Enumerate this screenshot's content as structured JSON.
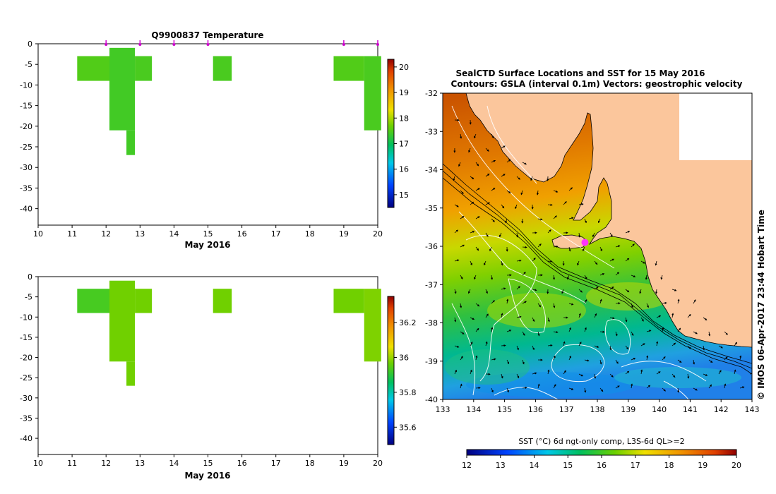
{
  "chart_data": [
    {
      "type": "heatmap",
      "title": "Q9900837  Temperature",
      "xlabel": "May 2016",
      "ylabel": "",
      "xlim": [
        10,
        20
      ],
      "ylim": [
        -44,
        0
      ],
      "x_ticks": [
        "10",
        "11",
        "12",
        "13",
        "14",
        "15",
        "16",
        "17",
        "18",
        "19",
        "20"
      ],
      "y_ticks": [
        "0",
        "-5",
        "-10",
        "-15",
        "-20",
        "-25",
        "-30",
        "-35",
        "-40"
      ],
      "profile_markers_x": [
        12,
        13,
        14,
        15,
        19,
        20
      ],
      "colorbar_ticks": [
        "15",
        "16",
        "17",
        "18",
        "19",
        "20"
      ],
      "colorbar_range": [
        14.5,
        20.3
      ],
      "cells": [
        {
          "x0": 11.15,
          "x1": 12.15,
          "y0": -9,
          "y1": -3,
          "value": 17.5
        },
        {
          "x0": 12.1,
          "x1": 12.85,
          "y0": -21,
          "y1": -1,
          "value": 17.4
        },
        {
          "x0": 12.6,
          "x1": 12.85,
          "y0": -27,
          "y1": -21,
          "value": 17.4
        },
        {
          "x0": 12.85,
          "x1": 13.35,
          "y0": -9,
          "y1": -3,
          "value": 17.45
        },
        {
          "x0": 15.15,
          "x1": 15.7,
          "y0": -9,
          "y1": -3,
          "value": 17.45
        },
        {
          "x0": 18.7,
          "x1": 19.6,
          "y0": -9,
          "y1": -3,
          "value": 17.5
        },
        {
          "x0": 19.6,
          "x1": 20.1,
          "y0": -21,
          "y1": -3,
          "value": 17.45
        }
      ]
    },
    {
      "type": "heatmap",
      "title": "",
      "xlabel": "May 2016",
      "ylabel": "",
      "xlim": [
        10,
        20
      ],
      "ylim": [
        -44,
        0
      ],
      "x_ticks": [
        "10",
        "11",
        "12",
        "13",
        "14",
        "15",
        "16",
        "17",
        "18",
        "19",
        "20"
      ],
      "y_ticks": [
        "0",
        "-5",
        "-10",
        "-15",
        "-20",
        "-25",
        "-30",
        "-35",
        "-40"
      ],
      "colorbar_ticks": [
        "35.6",
        "35.8",
        "36",
        "36.2"
      ],
      "colorbar_range": [
        35.5,
        36.35
      ],
      "cells": [
        {
          "x0": 11.15,
          "x1": 12.15,
          "y0": -9,
          "y1": -3,
          "value": 35.93
        },
        {
          "x0": 12.1,
          "x1": 12.85,
          "y0": -21,
          "y1": -1,
          "value": 35.97
        },
        {
          "x0": 12.6,
          "x1": 12.85,
          "y0": -27,
          "y1": -21,
          "value": 35.97
        },
        {
          "x0": 12.85,
          "x1": 13.35,
          "y0": -9,
          "y1": -3,
          "value": 35.97
        },
        {
          "x0": 15.15,
          "x1": 15.7,
          "y0": -9,
          "y1": -3,
          "value": 35.97
        },
        {
          "x0": 18.7,
          "x1": 19.6,
          "y0": -9,
          "y1": -3,
          "value": 35.97
        },
        {
          "x0": 19.6,
          "x1": 20.1,
          "y0": -21,
          "y1": -3,
          "value": 35.98
        }
      ]
    },
    {
      "type": "heatmap",
      "title": "SealCTD Surface Locations and SST for 15 May 2016",
      "subtitle": "Contours: GSLA (interval 0.1m) Vectors: geostrophic velocity",
      "xlabel": "",
      "ylabel": "",
      "xlim": [
        133,
        143
      ],
      "ylim": [
        -40,
        -32
      ],
      "x_ticks": [
        "133",
        "134",
        "135",
        "136",
        "137",
        "138",
        "139",
        "140",
        "141",
        "142",
        "143"
      ],
      "y_ticks": [
        "-32",
        "-33",
        "-34",
        "-35",
        "-36",
        "-37",
        "-38",
        "-39",
        "-40"
      ],
      "side_label": "© IMOS 06-Apr-2017 23:44 Hobart Time",
      "colorbar_label": "SST (°C) 6d ngt-only comp, L3S-6d QL>=2",
      "colorbar_ticks": [
        "12",
        "13",
        "14",
        "15",
        "16",
        "17",
        "18",
        "19",
        "20"
      ],
      "colorbar_range": [
        12,
        20
      ],
      "seal_position": {
        "lon": 137.6,
        "lat": -35.9
      },
      "sst_zones_by_lat": [
        {
          "lat": -32.5,
          "value": 19.0
        },
        {
          "lat": -34.5,
          "value": 18.4
        },
        {
          "lat": -36.5,
          "value": 17.4
        },
        {
          "lat": -37.5,
          "value": 17.0
        },
        {
          "lat": -38.5,
          "value": 16.0
        },
        {
          "lat": -39.5,
          "value": 14.8
        }
      ]
    }
  ],
  "colors": {
    "land": "#fbc69c",
    "contour": "#ffffff",
    "bathymetry": "#000000",
    "seal_marker": "#ff33ff",
    "profile_marker": "#cc00cc"
  }
}
